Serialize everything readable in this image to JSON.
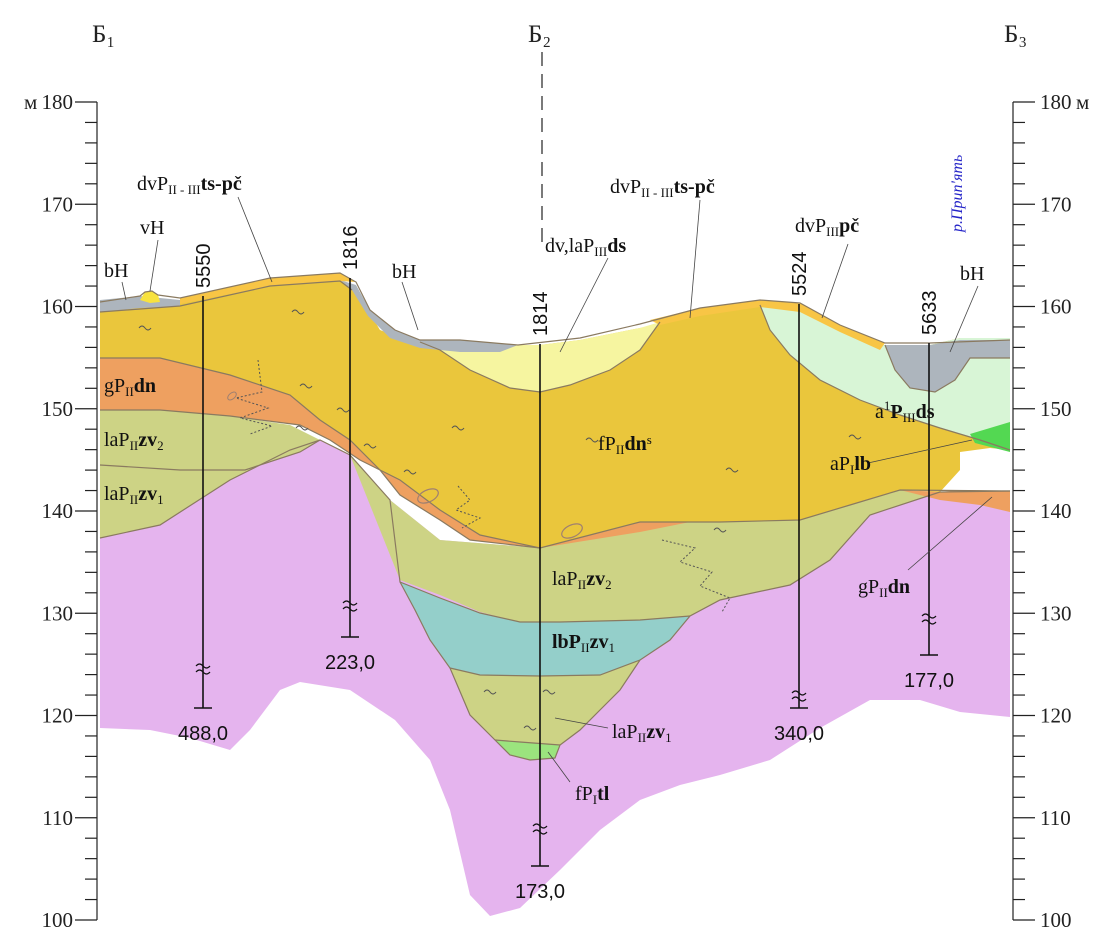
{
  "section": {
    "points": [
      {
        "id": "b1",
        "name": "Б₁"
      },
      {
        "id": "b2",
        "name": "Б₂"
      },
      {
        "id": "b3",
        "name": "Б₃"
      }
    ],
    "scale": {
      "unit": "м",
      "min": 100,
      "max": 180,
      "ticks_left": [
        "180",
        "170",
        "160",
        "150",
        "140",
        "130",
        "120",
        "110",
        "100"
      ],
      "ticks_right": [
        "180",
        "170",
        "160",
        "150",
        "140",
        "130",
        "120",
        "110",
        "100"
      ]
    },
    "wells": [
      {
        "id": "5550",
        "name": "5550",
        "depth": "488,0"
      },
      {
        "id": "1816",
        "name": "1816",
        "depth": "223,0"
      },
      {
        "id": "1814",
        "name": "1814",
        "depth": "173,0"
      },
      {
        "id": "5524",
        "name": "5524",
        "depth": "340,0"
      },
      {
        "id": "5633",
        "name": "5633",
        "depth": "177,0"
      }
    ],
    "river": "р.Прип'ять",
    "layer_labels": [
      {
        "id": "bH-left",
        "parts": [
          "bH"
        ]
      },
      {
        "id": "vH",
        "parts": [
          "vH"
        ]
      },
      {
        "id": "dvP-ts-pc-1",
        "parts": [
          "dvP",
          "II - III",
          "ts-pč"
        ]
      },
      {
        "id": "bH-mid",
        "parts": [
          "bH"
        ]
      },
      {
        "id": "dv-laPds",
        "parts": [
          "dv,laP",
          "III",
          "ds"
        ]
      },
      {
        "id": "dvP-ts-pc-2",
        "parts": [
          "dvP",
          "II - III",
          "ts-pč"
        ]
      },
      {
        "id": "dvPpc",
        "parts": [
          "dvP",
          "III",
          "pč"
        ]
      },
      {
        "id": "bH-right",
        "parts": [
          "bH"
        ]
      },
      {
        "id": "gPdn-left",
        "parts": [
          "gP",
          "II",
          "dn"
        ]
      },
      {
        "id": "laPzv2-left",
        "parts": [
          "laP",
          "II",
          "zv",
          "2"
        ]
      },
      {
        "id": "laPzv1-left",
        "parts": [
          "laP",
          "II",
          "zv",
          "1"
        ]
      },
      {
        "id": "fPdns",
        "parts": [
          "fP",
          "II",
          "dn",
          "s"
        ]
      },
      {
        "id": "a1Pds",
        "parts": [
          "a",
          "1",
          "P",
          "III",
          "ds"
        ]
      },
      {
        "id": "aPlb",
        "parts": [
          "aP",
          "I",
          "lb"
        ]
      },
      {
        "id": "laPzv2-mid",
        "parts": [
          "laP",
          "II",
          "zv",
          "2"
        ]
      },
      {
        "id": "gPdn-right",
        "parts": [
          "gP",
          "II",
          "dn"
        ]
      },
      {
        "id": "lbPzv1",
        "parts": [
          "lbP",
          "II",
          "zv",
          "1"
        ]
      },
      {
        "id": "laPzv1-bottom",
        "parts": [
          "laP",
          "II",
          "zv",
          "1"
        ]
      },
      {
        "id": "fPtl",
        "parts": [
          "fP",
          "I",
          "tl"
        ]
      }
    ]
  },
  "colors": {
    "basement": "#e5b4ee",
    "fPdns": "#eac63c",
    "gPdn": "#eea060",
    "laPzv2": "#cdd385",
    "lbPzv1": "#94cfca",
    "fPtl": "#9be47e",
    "a1Pds": "#d8f5d6",
    "aPlb": "#53d852",
    "bH": "#adb5bd",
    "dvP": "#f8c545",
    "dv_laPds": "#f6f5a0",
    "vH": "#f8e23e",
    "river_label": "#2424c8"
  }
}
